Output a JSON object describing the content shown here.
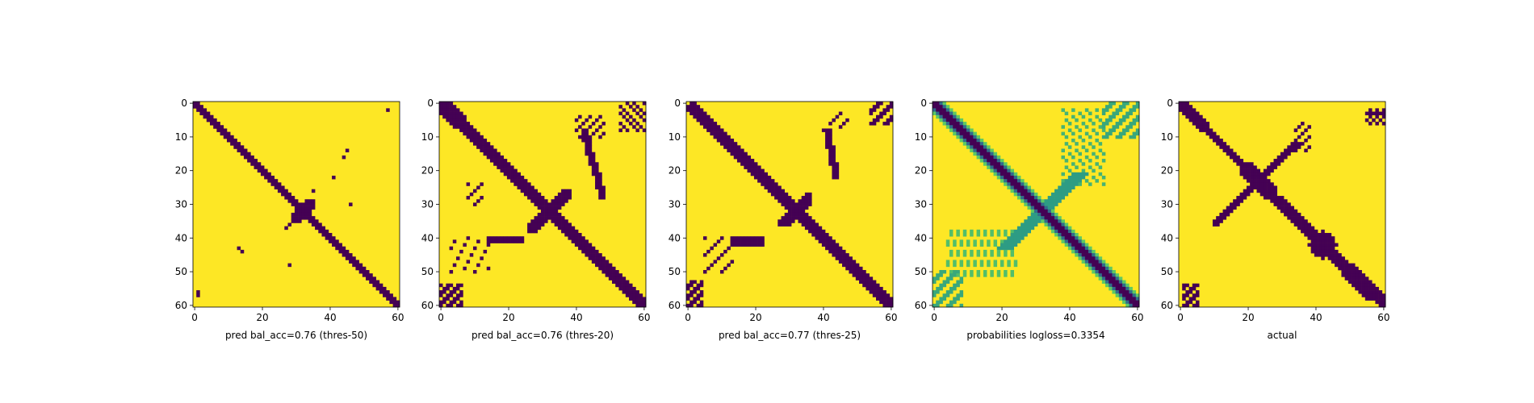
{
  "chart_data": [
    {
      "type": "heatmap",
      "title": "",
      "xlabel": "pred bal_acc=0.76 (thres-50)",
      "ylabel": "",
      "colormap": "viridis-binary",
      "xlim": [
        0,
        60
      ],
      "ylim": [
        60,
        0
      ],
      "xticks": [
        "0",
        "20",
        "40",
        "60"
      ],
      "yticks": [
        "0",
        "10",
        "20",
        "30",
        "40",
        "50",
        "60"
      ],
      "pattern": "diagonal band (width ~2 cells), small center cross at ~32, sparse isolated dots",
      "grid": false
    },
    {
      "type": "heatmap",
      "title": "",
      "xlabel": "pred bal_acc=0.76 (thres-20)",
      "ylabel": "",
      "colormap": "viridis-binary",
      "xlim": [
        0,
        60
      ],
      "ylim": [
        60,
        0
      ],
      "xticks": [
        "0",
        "20",
        "40",
        "60"
      ],
      "yticks": [
        "0",
        "10",
        "20",
        "30",
        "40",
        "50",
        "60"
      ],
      "pattern": "wider diagonal band, cross at ~32, off-diagonal branches and scattered patches",
      "grid": false
    },
    {
      "type": "heatmap",
      "title": "",
      "xlabel": "pred bal_acc=0.77 (thres-25)",
      "ylabel": "",
      "colormap": "viridis-binary",
      "xlim": [
        0,
        60
      ],
      "ylim": [
        60,
        0
      ],
      "xticks": [
        "0",
        "20",
        "40",
        "60"
      ],
      "yticks": [
        "0",
        "10",
        "20",
        "30",
        "40",
        "50",
        "60"
      ],
      "pattern": "diagonal band, cross at ~32, fewer off-diagonal patches",
      "grid": false
    },
    {
      "type": "heatmap",
      "title": "",
      "xlabel": "probabilities logloss=0.3354",
      "ylabel": "",
      "colormap": "viridis",
      "xlim": [
        0,
        60
      ],
      "ylim": [
        60,
        0
      ],
      "xticks": [
        "0",
        "20",
        "40",
        "60"
      ],
      "yticks": [
        "0",
        "10",
        "20",
        "30",
        "40",
        "50",
        "60"
      ],
      "pattern": "continuous probability map with dark diagonal and faint teal/green off-diagonal structure",
      "grid": false
    },
    {
      "type": "heatmap",
      "title": "",
      "xlabel": "actual",
      "ylabel": "",
      "colormap": "viridis-binary",
      "xlim": [
        0,
        60
      ],
      "ylim": [
        60,
        0
      ],
      "xticks": [
        "0",
        "20",
        "40",
        "60"
      ],
      "yticks": [
        "0",
        "10",
        "20",
        "30",
        "40",
        "50",
        "60"
      ],
      "pattern": "diagonal band with large X-shaped cross centered near (22,23), blob near (42,42)",
      "grid": false
    }
  ],
  "colors": {
    "background": "#fde725",
    "dark": "#440154",
    "mid_teal": "#21918c",
    "green": "#5ec962",
    "light_green": "#b5de2b"
  }
}
